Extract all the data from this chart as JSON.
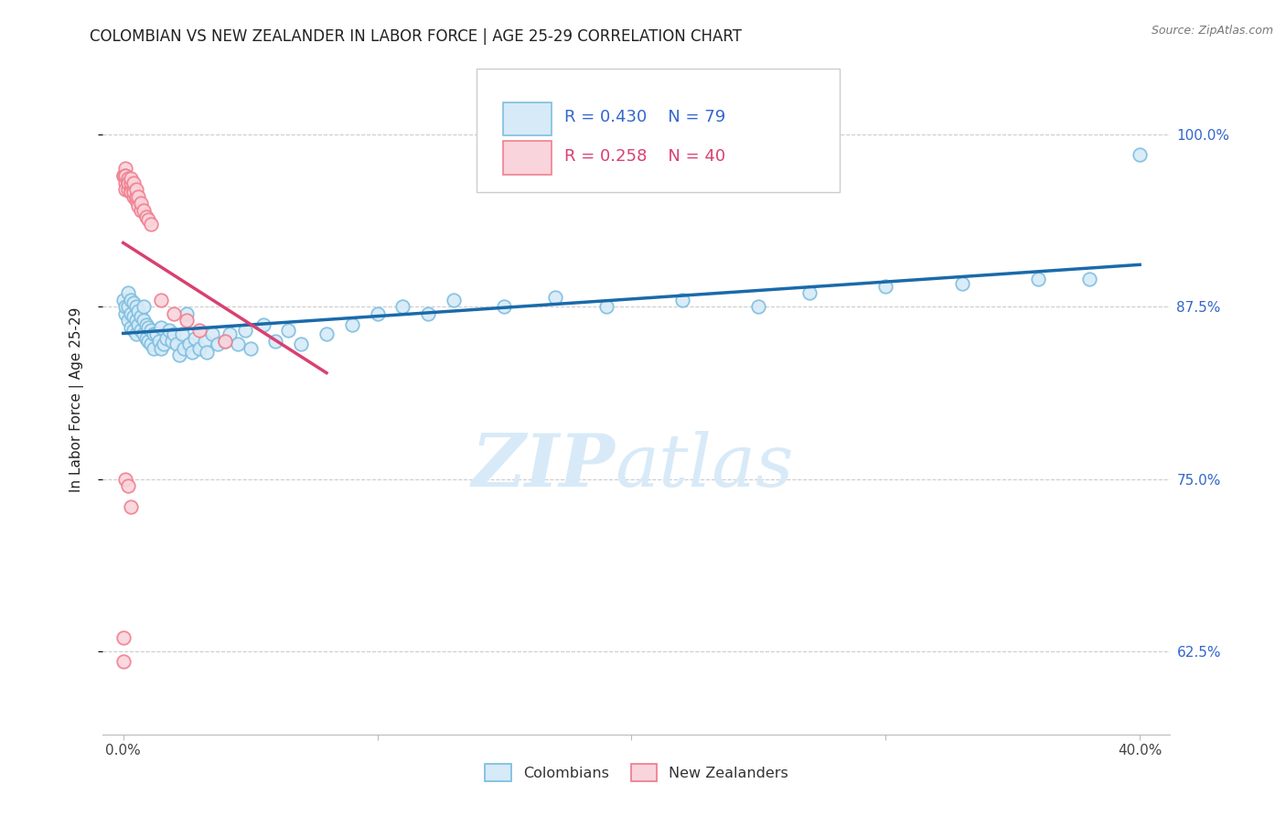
{
  "title": "COLOMBIAN VS NEW ZEALANDER IN LABOR FORCE | AGE 25-29 CORRELATION CHART",
  "source": "Source: ZipAtlas.com",
  "ylabel": "In Labor Force | Age 25-29",
  "ytick_labels": [
    "62.5%",
    "75.0%",
    "87.5%",
    "100.0%"
  ],
  "ytick_values": [
    0.625,
    0.75,
    0.875,
    1.0
  ],
  "watermark_zip": "ZIP",
  "watermark_atlas": "atlas",
  "legend_blue_r": "R = 0.430",
  "legend_blue_n": "N = 79",
  "legend_pink_r": "R = 0.258",
  "legend_pink_n": "N = 40",
  "legend_label_blue": "Colombians",
  "legend_label_pink": "New Zealanders",
  "blue_edge_color": "#7fbfdf",
  "blue_fill_color": "#d6eaf8",
  "pink_edge_color": "#f08090",
  "pink_fill_color": "#fad4dc",
  "blue_line_color": "#1a6aaa",
  "pink_line_color": "#d94070",
  "title_color": "#222222",
  "source_color": "#777777",
  "ytick_color": "#3366cc",
  "grid_color": "#cccccc",
  "watermark_color": "#d8eaf8"
}
